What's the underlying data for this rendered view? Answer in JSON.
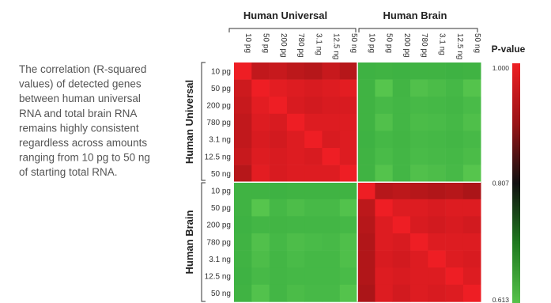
{
  "description": "The correlation (R-squared values) of detected genes between human universal RNA and total brain RNA remains highly consistent regardless across amounts ranging from 10 pg to 50 ng of starting total RNA.",
  "description_lines": [
    "The correlation (R-squared",
    "values) of detected genes",
    "between human universal",
    "RNA and total brain RNA",
    "remains highly consistent",
    "regardless across amounts",
    "ranging from 10 pg to 50 ng",
    "of starting total RNA."
  ],
  "chart_data": {
    "type": "heatmap",
    "groups": [
      "Human Universal",
      "Human Brain"
    ],
    "amounts": [
      "10 pg",
      "50 pg",
      "200 pg",
      "780 pg",
      "3.1 ng",
      "12.5 ng",
      "50 ng"
    ],
    "colorbar": {
      "title": "P-value",
      "ticks": [
        1.0,
        0.807,
        0.613
      ],
      "tick_labels": [
        "1.000",
        "0.807",
        "0.613"
      ],
      "colors": {
        "high": "#ee2020",
        "mid": "#111111",
        "low": "#50c050"
      }
    },
    "values": [
      [
        1.0,
        0.92,
        0.93,
        0.91,
        0.9,
        0.93,
        0.9,
        0.78,
        0.77,
        0.78,
        0.77,
        0.77,
        0.78,
        0.77
      ],
      [
        0.94,
        1.0,
        0.98,
        0.97,
        0.96,
        0.97,
        0.98,
        0.77,
        0.65,
        0.76,
        0.68,
        0.71,
        0.74,
        0.66
      ],
      [
        0.93,
        0.98,
        1.0,
        0.96,
        0.95,
        0.96,
        0.96,
        0.77,
        0.73,
        0.75,
        0.73,
        0.74,
        0.75,
        0.72
      ],
      [
        0.92,
        0.97,
        0.96,
        1.0,
        0.97,
        0.97,
        0.97,
        0.77,
        0.68,
        0.75,
        0.71,
        0.72,
        0.74,
        0.69
      ],
      [
        0.92,
        0.96,
        0.95,
        0.97,
        1.0,
        0.96,
        0.97,
        0.78,
        0.74,
        0.76,
        0.73,
        0.74,
        0.75,
        0.73
      ],
      [
        0.93,
        0.97,
        0.96,
        0.97,
        0.96,
        1.0,
        0.97,
        0.77,
        0.72,
        0.75,
        0.72,
        0.73,
        0.74,
        0.71
      ],
      [
        0.9,
        0.98,
        0.96,
        0.97,
        0.97,
        0.97,
        1.0,
        0.77,
        0.66,
        0.75,
        0.68,
        0.7,
        0.73,
        0.65
      ],
      [
        0.77,
        0.77,
        0.78,
        0.77,
        0.77,
        0.77,
        0.77,
        1.0,
        0.9,
        0.91,
        0.9,
        0.89,
        0.9,
        0.88
      ],
      [
        0.77,
        0.65,
        0.74,
        0.7,
        0.73,
        0.73,
        0.67,
        0.91,
        1.0,
        0.97,
        0.97,
        0.96,
        0.97,
        0.97
      ],
      [
        0.78,
        0.75,
        0.76,
        0.75,
        0.75,
        0.75,
        0.74,
        0.9,
        0.97,
        1.0,
        0.96,
        0.95,
        0.96,
        0.95
      ],
      [
        0.77,
        0.68,
        0.74,
        0.7,
        0.72,
        0.73,
        0.69,
        0.89,
        0.97,
        0.96,
        1.0,
        0.97,
        0.97,
        0.97
      ],
      [
        0.77,
        0.7,
        0.75,
        0.72,
        0.74,
        0.74,
        0.69,
        0.89,
        0.96,
        0.95,
        0.97,
        1.0,
        0.97,
        0.96
      ],
      [
        0.78,
        0.73,
        0.75,
        0.74,
        0.74,
        0.74,
        0.72,
        0.89,
        0.97,
        0.96,
        0.97,
        0.97,
        1.0,
        0.97
      ],
      [
        0.77,
        0.67,
        0.75,
        0.71,
        0.73,
        0.73,
        0.66,
        0.88,
        0.97,
        0.95,
        0.97,
        0.96,
        0.97,
        1.0
      ]
    ]
  }
}
